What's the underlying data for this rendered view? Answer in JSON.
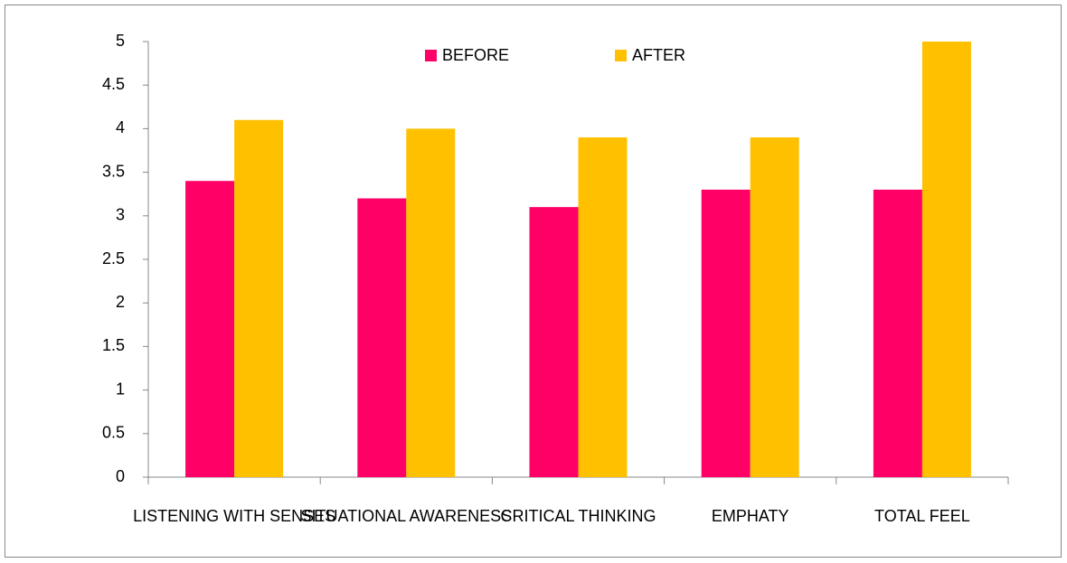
{
  "chart_data": {
    "type": "bar",
    "categories": [
      "LISTENING WITH SENSES",
      "SITUATIONAL AWARENESS",
      "CRITICAL THINKING",
      "EMPHATY",
      "TOTAL FEEL"
    ],
    "series": [
      {
        "name": "BEFORE",
        "color": "#ff0066",
        "values": [
          3.4,
          3.2,
          3.1,
          3.3,
          3.3
        ]
      },
      {
        "name": "AFTER",
        "color": "#ffc000",
        "values": [
          4.1,
          4.0,
          3.9,
          3.9,
          5.0
        ]
      }
    ],
    "ylim": [
      0,
      5
    ],
    "yticks": [
      0,
      0.5,
      1,
      1.5,
      2,
      2.5,
      3,
      3.5,
      4,
      4.5,
      5
    ],
    "grid": false,
    "legend": "top"
  }
}
